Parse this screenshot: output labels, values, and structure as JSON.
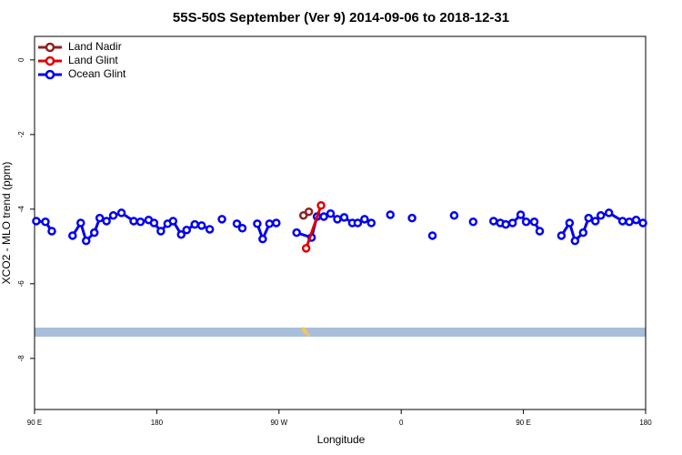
{
  "chart_data": {
    "type": "line",
    "title": "55S-50S September (Ver 9)   2014-09-06 to 2018-12-31",
    "x_label": "Longitude",
    "y_label": "XCO2 - MLO trend (ppm)",
    "xlim": [
      90,
      540
    ],
    "xticks": [
      {
        "value": 90,
        "label": "90 E"
      },
      180,
      {
        "value": 270,
        "label": "90 W"
      },
      {
        "value": 360,
        "label": "0"
      },
      {
        "value": 450,
        "label": "90 E"
      },
      {
        "value": 540,
        "label": "180"
      }
    ],
    "ylim": [
      -9.37,
      0.63
    ],
    "yticks": [
      0,
      -2,
      -4,
      -6,
      -8
    ],
    "legend": "top-left",
    "series": [
      {
        "name": "Land Nadir",
        "color": "#8b2323",
        "x": [
          288,
          292
        ],
        "values": [
          -4.17,
          -4.07
        ]
      },
      {
        "name": "Land Glint",
        "color": "#e00000",
        "x": [
          290,
          301
        ],
        "values": [
          -5.05,
          -3.9
        ]
      },
      {
        "name": "Ocean Glint",
        "color": "#0000ee",
        "x": [
          91.3,
          98,
          102.7,
          null,
          118,
          124,
          128,
          134,
          138,
          143,
          148,
          154,
          163,
          168,
          174,
          178,
          183,
          188,
          192,
          198,
          202,
          208,
          213,
          219,
          null,
          228,
          null,
          239,
          243,
          null,
          254,
          258,
          263,
          268,
          null,
          283,
          294,
          298,
          303,
          308,
          313,
          318,
          324,
          328,
          333,
          338,
          null,
          352,
          null,
          368,
          null,
          383,
          null,
          399,
          null,
          413,
          null,
          428,
          433,
          437,
          442,
          448,
          452,
          458,
          462,
          null,
          478,
          484,
          488,
          494,
          498,
          503,
          507,
          513,
          523,
          528,
          533,
          538
        ],
        "values": [
          -4.32,
          -4.34,
          -4.59,
          null,
          -4.71,
          -4.37,
          -4.85,
          -4.63,
          -4.24,
          -4.32,
          -4.17,
          -4.1,
          -4.32,
          -4.34,
          -4.29,
          -4.37,
          -4.59,
          -4.39,
          -4.32,
          -4.68,
          -4.56,
          -4.41,
          -4.44,
          -4.54,
          null,
          -4.27,
          null,
          -4.39,
          -4.51,
          null,
          -4.39,
          -4.8,
          -4.39,
          -4.37,
          null,
          -4.63,
          -4.76,
          -4.2,
          -4.2,
          -4.12,
          -4.27,
          -4.22,
          -4.37,
          -4.37,
          -4.27,
          -4.37,
          null,
          -4.15,
          null,
          -4.24,
          null,
          -4.71,
          null,
          -4.17,
          null,
          -4.34,
          null,
          -4.32,
          -4.37,
          -4.41,
          -4.37,
          -4.15,
          -4.34,
          -4.34,
          -4.59,
          null,
          -4.71,
          -4.37,
          -4.85,
          -4.63,
          -4.24,
          -4.32,
          -4.17,
          -4.1,
          -4.32,
          -4.34,
          -4.29,
          -4.37
        ]
      }
    ]
  }
}
